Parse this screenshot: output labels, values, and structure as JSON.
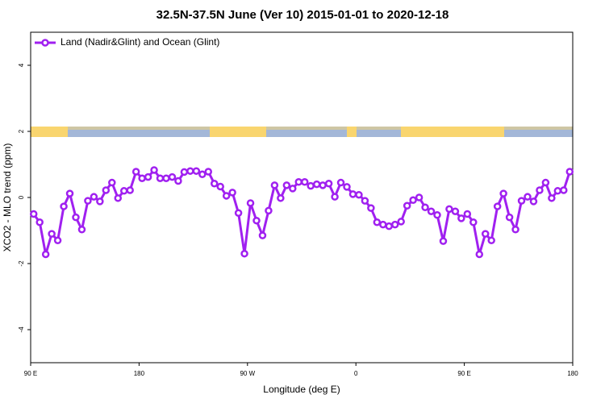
{
  "chart_data": {
    "type": "line",
    "title": "32.5N-37.5N June (Ver 10)   2015-01-01 to 2020-12-18",
    "x_label": "Longitude (deg E)",
    "y_label": "XCO2 - MLO trend (ppm)",
    "xlim": [
      90,
      540
    ],
    "xticks": [
      {
        "value": 90,
        "label": "90 E"
      },
      180,
      {
        "value": 270,
        "label": "90 W"
      },
      {
        "value": 360,
        "label": "0"
      },
      {
        "value": 450,
        "label": "90 E"
      },
      {
        "value": 540,
        "label": "180"
      }
    ],
    "ylim": [
      -5,
      5
    ],
    "yticks": [
      -4,
      -2,
      0,
      2,
      4
    ],
    "legend": "topleft",
    "x": [
      92.5,
      97.5,
      102.5,
      107.5,
      112.5,
      117.5,
      122.5,
      127.5,
      132.5,
      137.5,
      142.5,
      147.5,
      152.5,
      157.5,
      162.5,
      167.5,
      172.5,
      177.5,
      182.5,
      187.5,
      192.5,
      197.5,
      202.5,
      207.5,
      212.5,
      217.5,
      222.5,
      227.5,
      232.5,
      237.5,
      242.5,
      247.5,
      252.5,
      257.5,
      262.5,
      267.5,
      272.5,
      277.5,
      282.5,
      287.5,
      292.5,
      297.5,
      302.5,
      307.5,
      312.5,
      317.5,
      322.5,
      327.5,
      332.5,
      337.5,
      342.5,
      347.5,
      352.5,
      357.5,
      362.5,
      367.5,
      372.5,
      377.5,
      382.5,
      387.5,
      392.5,
      397.5,
      402.5,
      407.5,
      412.5,
      417.5,
      422.5,
      427.5,
      432.5,
      437.5,
      442.5,
      447.5,
      452.5,
      457.5,
      462.5,
      467.5,
      472.5,
      477.5,
      482.5,
      487.5,
      492.5,
      497.5,
      502.5,
      507.5,
      512.5,
      517.5,
      522.5,
      527.5,
      532.5,
      537.5
    ],
    "series": [
      {
        "name": "Land (Nadir&Glint) and Ocean (Glint)",
        "color": "#a020f0",
        "values": [
          -0.5,
          -0.75,
          -1.72,
          -1.1,
          -1.3,
          -0.27,
          0.12,
          -0.6,
          -0.97,
          -0.1,
          0.02,
          -0.12,
          0.22,
          0.45,
          -0.02,
          0.2,
          0.22,
          0.78,
          0.58,
          0.62,
          0.83,
          0.58,
          0.58,
          0.62,
          0.5,
          0.77,
          0.8,
          0.8,
          0.7,
          0.78,
          0.42,
          0.33,
          0.05,
          0.15,
          -0.47,
          -1.7,
          -0.17,
          -0.7,
          -1.15,
          -0.4,
          0.37,
          -0.02,
          0.37,
          0.27,
          0.47,
          0.47,
          0.35,
          0.4,
          0.37,
          0.42,
          0.02,
          0.45,
          0.32,
          0.1,
          0.08,
          -0.1,
          -0.32,
          -0.75,
          -0.82,
          -0.87,
          -0.82,
          -0.73,
          -0.25,
          -0.08,
          0.0,
          -0.3,
          -0.42,
          -0.53,
          -1.32,
          -0.35,
          -0.42,
          -0.63,
          -0.5,
          -0.75,
          -1.72,
          -1.1,
          -1.3,
          -0.27,
          0.12,
          -0.6,
          -0.97,
          -0.1,
          0.02,
          -0.12,
          0.22,
          0.45,
          -0.02,
          0.2,
          0.22,
          0.78
        ]
      }
    ]
  }
}
